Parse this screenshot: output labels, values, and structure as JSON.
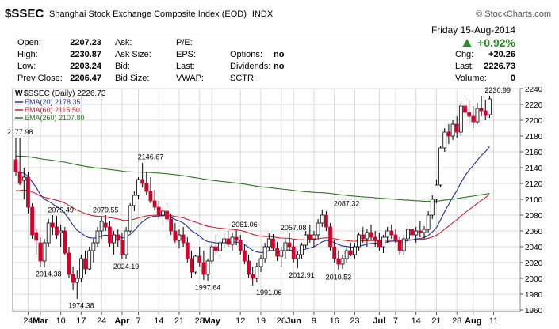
{
  "header": {
    "symbol": "$SSEC",
    "name": "Shanghai Stock Exchange Composite Index (EOD)",
    "exchange": "INDX",
    "brand": "© StockCharts.com",
    "date": "Friday  15-Aug-2014",
    "change_pct": "+0.92%",
    "quote_rows": [
      {
        "l1": "Open:",
        "v1": "2207.23",
        "l2": "Ask:",
        "v2": "",
        "l3": "P/E:",
        "v3": "",
        "l4": "",
        "v4": "",
        "l5": "",
        "v5": ""
      },
      {
        "l1": "High:",
        "v1": "2230.87",
        "l2": "Ask Size:",
        "v2": "",
        "l3": "EPS:",
        "v3": "",
        "l4": "Options:",
        "v4": "no",
        "l5": "Chg:",
        "v5": "+20.26"
      },
      {
        "l1": "Low:",
        "v1": "2203.24",
        "l2": "Bid:",
        "v2": "",
        "l3": "Last:",
        "v3": "",
        "l4": "Dividends:",
        "v4": "no",
        "l5": "Last:",
        "v5": "2226.73"
      },
      {
        "l1": "Prev Close:",
        "v1": "2206.47",
        "l2": "Bid Size:",
        "v2": "",
        "l3": "VWAP:",
        "v3": "",
        "l4": "SCTR:",
        "v4": "",
        "l5": "Volume:",
        "v5": "0"
      }
    ]
  },
  "colors": {
    "up": "#ffffff",
    "down": "#d4002a",
    "ema20": "#1f2fa0",
    "ema60": "#d02030",
    "ema260": "#2a7a1e",
    "grid": "#d8d8d8",
    "accent": "#2a8a2a"
  },
  "chart_data": {
    "type": "candlestick",
    "title": "$SSEC (Daily) 2226.73",
    "legend": [
      {
        "text": "EMA(20) 2178.35",
        "color": "#1f2fa0"
      },
      {
        "text": "EMA(60) 2115.50",
        "color": "#d02030"
      },
      {
        "text": "EMA(260) 2107.80",
        "color": "#2a7a1e"
      }
    ],
    "ylim": [
      1960,
      2240
    ],
    "yticks": [
      1960,
      1980,
      2000,
      2020,
      2040,
      2060,
      2080,
      2100,
      2120,
      2140,
      2160,
      2180,
      2200,
      2220,
      2240
    ],
    "xticks": [
      {
        "label": "24",
        "i": 3,
        "bold": false
      },
      {
        "label": "Mar",
        "i": 6,
        "bold": true
      },
      {
        "label": "10",
        "i": 11,
        "bold": false
      },
      {
        "label": "17",
        "i": 16,
        "bold": false
      },
      {
        "label": "24",
        "i": 21,
        "bold": false
      },
      {
        "label": "Apr",
        "i": 26,
        "bold": true
      },
      {
        "label": "7",
        "i": 30,
        "bold": false
      },
      {
        "label": "14",
        "i": 35,
        "bold": false
      },
      {
        "label": "21",
        "i": 40,
        "bold": false
      },
      {
        "label": "28",
        "i": 45,
        "bold": false
      },
      {
        "label": "May",
        "i": 48,
        "bold": true
      },
      {
        "label": "12",
        "i": 55,
        "bold": false
      },
      {
        "label": "19",
        "i": 60,
        "bold": false
      },
      {
        "label": "26",
        "i": 65,
        "bold": false
      },
      {
        "label": "Jun",
        "i": 68,
        "bold": true
      },
      {
        "label": "9",
        "i": 73,
        "bold": false
      },
      {
        "label": "16",
        "i": 78,
        "bold": false
      },
      {
        "label": "23",
        "i": 83,
        "bold": false
      },
      {
        "label": "Jul",
        "i": 89,
        "bold": true
      },
      {
        "label": "7",
        "i": 93,
        "bold": false
      },
      {
        "label": "14",
        "i": 98,
        "bold": false
      },
      {
        "label": "21",
        "i": 103,
        "bold": false
      },
      {
        "label": "28",
        "i": 108,
        "bold": false
      },
      {
        "label": "Aug",
        "i": 112,
        "bold": true
      },
      {
        "label": "11",
        "i": 117,
        "bold": false
      }
    ],
    "annotations": [
      {
        "text": "2177.98",
        "i": 1,
        "y": 2177.98,
        "pos": "above"
      },
      {
        "text": "2079.49",
        "i": 11,
        "y": 2079.49,
        "pos": "above"
      },
      {
        "text": "2079.55",
        "i": 22,
        "y": 2079.55,
        "pos": "above"
      },
      {
        "text": "2146.67",
        "i": 33,
        "y": 2146.67,
        "pos": "above"
      },
      {
        "text": "2061.06",
        "i": 56,
        "y": 2061.06,
        "pos": "above"
      },
      {
        "text": "2057.08",
        "i": 68,
        "y": 2057.08,
        "pos": "above"
      },
      {
        "text": "2087.32",
        "i": 81,
        "y": 2087.32,
        "pos": "above"
      },
      {
        "text": "2230.99",
        "i": 118,
        "y": 2230.99,
        "pos": "above"
      },
      {
        "text": "2014.38",
        "i": 8,
        "y": 2014.38,
        "pos": "below"
      },
      {
        "text": "1974.38",
        "i": 16,
        "y": 1974.38,
        "pos": "below"
      },
      {
        "text": "2024.19",
        "i": 27,
        "y": 2024.19,
        "pos": "below"
      },
      {
        "text": "1997.64",
        "i": 47,
        "y": 1997.64,
        "pos": "below"
      },
      {
        "text": "1991.06",
        "i": 62,
        "y": 1991.06,
        "pos": "below"
      },
      {
        "text": "2012.91",
        "i": 70,
        "y": 2012.91,
        "pos": "below"
      },
      {
        "text": "2010.53",
        "i": 79,
        "y": 2010.53,
        "pos": "below"
      }
    ],
    "candles": [
      [
        2150,
        2178,
        2130,
        2135
      ],
      [
        2135,
        2178,
        2118,
        2120
      ],
      [
        2124,
        2140,
        2100,
        2128
      ],
      [
        2128,
        2135,
        2082,
        2090
      ],
      [
        2090,
        2095,
        2050,
        2055
      ],
      [
        2058,
        2062,
        2030,
        2048
      ],
      [
        2045,
        2052,
        2015,
        2022
      ],
      [
        2022,
        2050,
        2014,
        2045
      ],
      [
        2045,
        2075,
        2040,
        2070
      ],
      [
        2070,
        2080,
        2055,
        2065
      ],
      [
        2065,
        2079,
        2050,
        2055
      ],
      [
        2058,
        2068,
        2040,
        2060
      ],
      [
        2060,
        2065,
        2030,
        2032
      ],
      [
        2032,
        2040,
        2000,
        2005
      ],
      [
        2005,
        2015,
        1985,
        1995
      ],
      [
        1995,
        2010,
        1974,
        2000
      ],
      [
        2000,
        2030,
        1995,
        2025
      ],
      [
        2025,
        2035,
        2005,
        2012
      ],
      [
        2012,
        2040,
        2010,
        2035
      ],
      [
        2035,
        2050,
        2020,
        2045
      ],
      [
        2045,
        2065,
        2040,
        2060
      ],
      [
        2060,
        2078,
        2050,
        2072
      ],
      [
        2070,
        2080,
        2060,
        2065
      ],
      [
        2065,
        2072,
        2040,
        2045
      ],
      [
        2045,
        2060,
        2030,
        2055
      ],
      [
        2055,
        2062,
        2040,
        2048
      ],
      [
        2048,
        2058,
        2025,
        2030
      ],
      [
        2030,
        2065,
        2024,
        2060
      ],
      [
        2060,
        2095,
        2058,
        2092
      ],
      [
        2092,
        2110,
        2085,
        2105
      ],
      [
        2105,
        2128,
        2100,
        2125
      ],
      [
        2125,
        2146,
        2115,
        2120
      ],
      [
        2120,
        2135,
        2105,
        2110
      ],
      [
        2110,
        2128,
        2095,
        2098
      ],
      [
        2098,
        2112,
        2086,
        2090
      ],
      [
        2090,
        2098,
        2075,
        2080
      ],
      [
        2080,
        2092,
        2068,
        2085
      ],
      [
        2085,
        2095,
        2070,
        2075
      ],
      [
        2075,
        2082,
        2055,
        2060
      ],
      [
        2060,
        2070,
        2045,
        2048
      ],
      [
        2048,
        2062,
        2038,
        2055
      ],
      [
        2055,
        2065,
        2040,
        2045
      ],
      [
        2045,
        2052,
        2020,
        2025
      ],
      [
        2025,
        2035,
        2000,
        2008
      ],
      [
        2008,
        2030,
        2005,
        2028
      ],
      [
        2028,
        2040,
        2015,
        2020
      ],
      [
        2020,
        2035,
        1998,
        2005
      ],
      [
        2005,
        2025,
        1997,
        2022
      ],
      [
        2022,
        2045,
        2018,
        2040
      ],
      [
        2040,
        2055,
        2030,
        2035
      ],
      [
        2035,
        2048,
        2025,
        2045
      ],
      [
        2045,
        2058,
        2038,
        2050
      ],
      [
        2050,
        2060,
        2040,
        2043
      ],
      [
        2043,
        2058,
        2035,
        2052
      ],
      [
        2052,
        2061,
        2042,
        2048
      ],
      [
        2048,
        2055,
        2030,
        2035
      ],
      [
        2035,
        2042,
        2018,
        2022
      ],
      [
        2022,
        2030,
        2000,
        2005
      ],
      [
        2005,
        2015,
        1991,
        2000
      ],
      [
        2000,
        2020,
        1995,
        2015
      ],
      [
        2015,
        2030,
        2008,
        2025
      ],
      [
        2025,
        2045,
        2020,
        2040
      ],
      [
        2040,
        2057,
        2035,
        2050
      ],
      [
        2050,
        2056,
        2035,
        2038
      ],
      [
        2038,
        2046,
        2022,
        2028
      ],
      [
        2028,
        2040,
        2015,
        2035
      ],
      [
        2035,
        2050,
        2025,
        2045
      ],
      [
        2045,
        2057,
        2035,
        2040
      ],
      [
        2040,
        2048,
        2020,
        2025
      ],
      [
        2025,
        2035,
        2013,
        2030
      ],
      [
        2030,
        2045,
        2025,
        2042
      ],
      [
        2042,
        2060,
        2038,
        2055
      ],
      [
        2055,
        2068,
        2045,
        2050
      ],
      [
        2050,
        2060,
        2040,
        2055
      ],
      [
        2055,
        2075,
        2050,
        2070
      ],
      [
        2070,
        2087,
        2065,
        2080
      ],
      [
        2080,
        2085,
        2060,
        2065
      ],
      [
        2065,
        2070,
        2035,
        2040
      ],
      [
        2040,
        2048,
        2020,
        2025
      ],
      [
        2025,
        2035,
        2011,
        2018
      ],
      [
        2018,
        2030,
        2012,
        2025
      ],
      [
        2025,
        2040,
        2020,
        2035
      ],
      [
        2035,
        2045,
        2028,
        2030
      ],
      [
        2030,
        2045,
        2025,
        2040
      ],
      [
        2040,
        2058,
        2035,
        2055
      ],
      [
        2055,
        2065,
        2045,
        2050
      ],
      [
        2050,
        2062,
        2040,
        2058
      ],
      [
        2058,
        2068,
        2048,
        2052
      ],
      [
        2052,
        2060,
        2040,
        2048
      ],
      [
        2048,
        2058,
        2035,
        2040
      ],
      [
        2040,
        2055,
        2032,
        2052
      ],
      [
        2052,
        2065,
        2045,
        2060
      ],
      [
        2060,
        2068,
        2050,
        2055
      ],
      [
        2055,
        2062,
        2045,
        2048
      ],
      [
        2048,
        2052,
        2030,
        2035
      ],
      [
        2035,
        2055,
        2030,
        2050
      ],
      [
        2050,
        2068,
        2045,
        2062
      ],
      [
        2062,
        2070,
        2050,
        2055
      ],
      [
        2055,
        2065,
        2045,
        2060
      ],
      [
        2060,
        2072,
        2052,
        2058
      ],
      [
        2058,
        2066,
        2050,
        2062
      ],
      [
        2062,
        2085,
        2058,
        2080
      ],
      [
        2080,
        2105,
        2075,
        2100
      ],
      [
        2100,
        2125,
        2095,
        2118
      ],
      [
        2118,
        2168,
        2115,
        2165
      ],
      [
        2165,
        2190,
        2160,
        2185
      ],
      [
        2185,
        2195,
        2170,
        2180
      ],
      [
        2180,
        2200,
        2175,
        2195
      ],
      [
        2195,
        2205,
        2178,
        2185
      ],
      [
        2185,
        2222,
        2180,
        2218
      ],
      [
        2218,
        2230,
        2200,
        2210
      ],
      [
        2210,
        2225,
        2195,
        2205
      ],
      [
        2205,
        2218,
        2190,
        2198
      ],
      [
        2198,
        2222,
        2195,
        2215
      ],
      [
        2215,
        2231,
        2205,
        2212
      ],
      [
        2212,
        2226,
        2200,
        2206
      ],
      [
        2207,
        2231,
        2203,
        2227
      ]
    ]
  }
}
